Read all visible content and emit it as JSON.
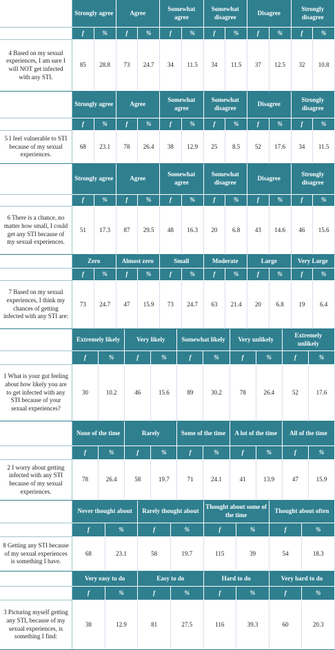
{
  "labels": {
    "f": "f",
    "pct": "%"
  },
  "sections": [
    {
      "question": "4 Based on my sexual experiences, I am sure I will NOT get infected with any STI.",
      "options": [
        "Strongly agree",
        "Agree",
        "Somewhat agree",
        "Somewhat disagree",
        "Disagree",
        "Strongly disagree"
      ],
      "values": [
        [
          85,
          28.8
        ],
        [
          73,
          24.7
        ],
        [
          34,
          11.5
        ],
        [
          34,
          11.5
        ],
        [
          37,
          12.5
        ],
        [
          32,
          10.8
        ]
      ]
    },
    {
      "question": "5 I feel vulnerable to STI because of my sexual experiences.",
      "options": [
        "Strongly agree",
        "Agree",
        "Somewhat agree",
        "Somewhat disagree",
        "Disagree",
        "Strongly disagree"
      ],
      "values": [
        [
          68,
          23.1
        ],
        [
          78,
          26.4
        ],
        [
          38,
          12.9
        ],
        [
          25,
          8.5
        ],
        [
          52,
          17.6
        ],
        [
          34,
          11.5
        ]
      ]
    },
    {
      "question": "6 There is a chance, no matter how small, I could get any STI because of my sexual experiences.",
      "options": [
        "Strongly agree",
        "Agree",
        "Somewhat agree",
        "Somewhat disagree",
        "Disagree",
        "Strongly disagree"
      ],
      "values": [
        [
          51,
          17.3
        ],
        [
          87,
          29.5
        ],
        [
          48,
          16.3
        ],
        [
          20,
          6.8
        ],
        [
          43,
          14.6
        ],
        [
          46,
          15.6
        ]
      ]
    },
    {
      "question": "7 Based on my sexual experiences, I think my chances of getting infected with any STI are:",
      "options": [
        "Zero",
        "Almost zero",
        "Small",
        "Moderate",
        "Large",
        "Very Large"
      ],
      "values": [
        [
          73,
          24.7
        ],
        [
          47,
          15.9
        ],
        [
          73,
          24.7
        ],
        [
          63,
          21.4
        ],
        [
          20,
          6.8
        ],
        [
          19,
          6.4
        ]
      ]
    },
    {
      "question": "1 What is your gut feeling about how likely you are to get infected with any STI because of your sexual experiences?",
      "options": [
        "Extremely likely",
        "Very likely",
        "Somewhat likely",
        "Very unlikely",
        "Extremely unlikely"
      ],
      "values": [
        [
          30,
          10.2
        ],
        [
          46,
          15.6
        ],
        [
          89,
          30.2
        ],
        [
          78,
          26.4
        ],
        [
          52,
          17.6
        ]
      ]
    },
    {
      "question": "2 I worry about getting infected with any STI because of my sexual experiences.",
      "options": [
        "None of the time",
        "Rarely",
        "Some of the time",
        "A lot of the time",
        "All of the time"
      ],
      "values": [
        [
          78,
          26.4
        ],
        [
          58,
          19.7
        ],
        [
          71,
          24.1
        ],
        [
          41,
          13.9
        ],
        [
          47,
          15.9
        ]
      ]
    },
    {
      "question": "8 Getting any STI because of my sexual experiences is something I have.",
      "options": [
        "Never thought about",
        "Rarely thought about",
        "Thought about some of the time",
        "Thought about often"
      ],
      "values": [
        [
          68,
          23.1
        ],
        [
          58,
          19.7
        ],
        [
          115,
          39
        ],
        [
          54,
          18.3
        ]
      ]
    },
    {
      "question": "3 Picturing myself getting any STI, because of my sexual experiences, is something I find:",
      "options": [
        "Very easy to do",
        "Easy to do",
        "Hard to do",
        "Very hard to do"
      ],
      "values": [
        [
          38,
          12.9
        ],
        [
          81,
          27.5
        ],
        [
          116,
          39.3
        ],
        [
          60,
          20.3
        ]
      ]
    }
  ]
}
